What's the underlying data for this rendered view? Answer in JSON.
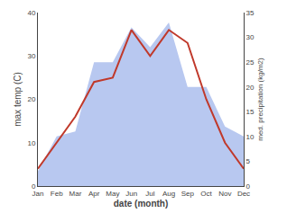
{
  "chart_data": {
    "type": "line",
    "xlabel": "date (month)",
    "ylabel": "max temp (C)",
    "y2label": "med. precipitation (kg/m2)",
    "categories": [
      "Jan",
      "Feb",
      "Mar",
      "Apr",
      "May",
      "Jun",
      "Jul",
      "Aug",
      "Sep",
      "Oct",
      "Nov",
      "Dec"
    ],
    "series": [
      {
        "type": "line",
        "color": "#c0392b",
        "values": [
          4,
          10,
          16,
          24,
          25,
          36,
          30,
          36,
          33,
          20,
          10,
          4
        ]
      },
      {
        "type": "area",
        "color": "#b8c8f0",
        "axis": "y2",
        "values": [
          3,
          10,
          11,
          25,
          25,
          32,
          28,
          33,
          20,
          20,
          12,
          10
        ]
      }
    ],
    "ylim": [
      0,
      40
    ],
    "yticks": [
      0,
      10,
      20,
      30,
      40
    ],
    "y2lim": [
      0,
      35
    ],
    "y2ticks": [
      0,
      5,
      10,
      15,
      20,
      25,
      30,
      35
    ],
    "grid": false
  }
}
